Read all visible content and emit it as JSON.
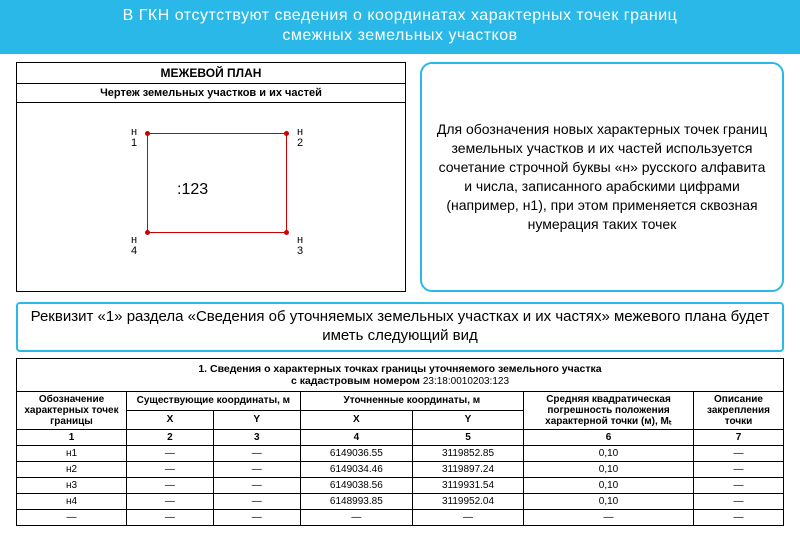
{
  "header": {
    "line1": "В ГКН отсутствуют сведения о координатах характерных точек границ",
    "line2": "смежных земельных участков"
  },
  "plan": {
    "title": "МЕЖЕВОЙ ПЛАН",
    "subtitle": "Чертеж земельных участков и их частей",
    "rect_label": ":123",
    "points": [
      {
        "id": "н1",
        "l1": "н",
        "l2": "1"
      },
      {
        "id": "н2",
        "l1": "н",
        "l2": "2"
      },
      {
        "id": "н3",
        "l1": "н",
        "l2": "3"
      },
      {
        "id": "н4",
        "l1": "н",
        "l2": "4"
      }
    ],
    "rect_color": "#d00000"
  },
  "info": {
    "text": "Для обозначения новых характерных точек границ земельных участков и их частей используется сочетание строчной буквы «н» русского алфавита и числа, записанного арабскими цифрами (например, н1), при этом применяется сквозная нумерация таких точек"
  },
  "section": {
    "text": "Реквизит «1» раздела «Сведения об уточняемых земельных участках и их частях» межевого плана будет иметь следующий вид"
  },
  "table": {
    "title_a": "1. Сведения о характерных точках границы уточняемого земельного участка",
    "title_b_prefix": "с кадастровым номером ",
    "cad_number": "23:18:0010203:123",
    "head": {
      "c1": "Обозначение характерных точек границы",
      "c2": "Существующие координаты, м",
      "c3": "Уточненные координаты, м",
      "c4": "Средняя квадратическая погрешность положения характерной точки (м), Mₜ",
      "c5": "Описание закрепления точки",
      "x": "X",
      "y": "Y"
    },
    "numrow": [
      "1",
      "2",
      "3",
      "4",
      "5",
      "6",
      "7"
    ],
    "rows": [
      {
        "id": "н1",
        "ex_x": "—",
        "ex_y": "—",
        "ux": "6149036.55",
        "uy": "3119852.85",
        "m": "0,10",
        "d": "—"
      },
      {
        "id": "н2",
        "ex_x": "—",
        "ex_y": "—",
        "ux": "6149034.46",
        "uy": "3119897.24",
        "m": "0,10",
        "d": "—"
      },
      {
        "id": "н3",
        "ex_x": "—",
        "ex_y": "—",
        "ux": "6149038.56",
        "uy": "3119931.54",
        "m": "0,10",
        "d": "—"
      },
      {
        "id": "н4",
        "ex_x": "—",
        "ex_y": "—",
        "ux": "6148993.85",
        "uy": "3119952.04",
        "m": "0,10",
        "d": "—"
      },
      {
        "id": "—",
        "ex_x": "—",
        "ex_y": "—",
        "ux": "—",
        "uy": "—",
        "m": "—",
        "d": "—"
      }
    ]
  },
  "colors": {
    "accent": "#2ab8e8",
    "rect": "#d00000",
    "bg": "#ffffff",
    "text": "#000000"
  }
}
